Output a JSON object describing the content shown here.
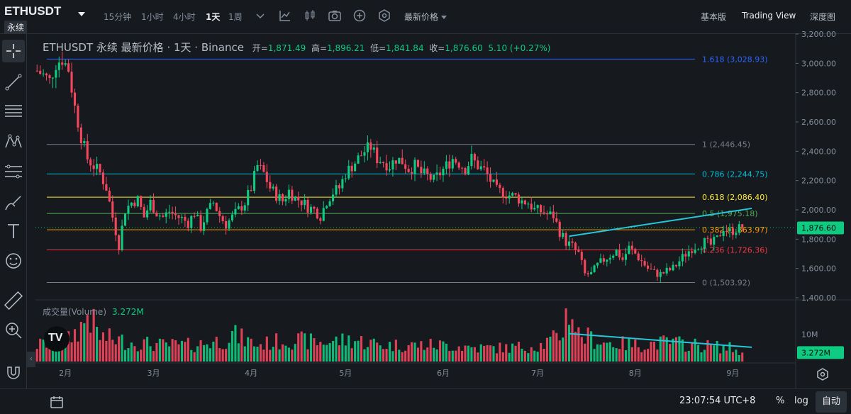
{
  "header": {
    "symbol": "ETHUSDT",
    "contract": "永续",
    "timeframes": [
      {
        "label": "15分钟",
        "active": false
      },
      {
        "label": "1小时",
        "active": false
      },
      {
        "label": "4小时",
        "active": false
      },
      {
        "label": "1天",
        "active": true
      },
      {
        "label": "1周",
        "active": false
      }
    ],
    "toolbar_icons": [
      "chevron-down-icon",
      "indicators-icon",
      "candle-style-icon",
      "camera-icon",
      "plus-circle-icon",
      "settings-hex-icon"
    ],
    "price_type": "最新价格",
    "views": [
      {
        "label": "基本版",
        "active": false
      },
      {
        "label": "Trading View",
        "active": true
      },
      {
        "label": "深度图",
        "active": false
      }
    ]
  },
  "left_tools": [
    "crosshair-icon",
    "trend-line-icon",
    "horizontal-lines-icon",
    "pattern-icon",
    "fib-icon",
    "brush-icon",
    "text-icon",
    "emoji-icon",
    "ruler-icon",
    "zoom-in-icon",
    "magnet-icon"
  ],
  "legend": {
    "title": "ETHUSDT 永续 最新价格 · 1天 · Binance",
    "open_label": "开=",
    "open": "1,871.49",
    "high_label": "高=",
    "high": "1,896.21",
    "low_label": "低=",
    "low": "1,841.84",
    "close_label": "收=",
    "close": "1,876.60",
    "change": "5.10 (+0.27%)"
  },
  "volume_legend": {
    "label": "成交量(Volume)",
    "value": "3.272M"
  },
  "colors": {
    "up": "#0ecb81",
    "down": "#f6465d",
    "background": "#161a1e",
    "grid": "#2b3139",
    "trendline": "#26c6da",
    "fib_1618": "#2962ff",
    "fib_1": "#787b86",
    "fib_0786": "#00bcd4",
    "fib_0618": "#ffeb3b",
    "fib_05": "#4caf50",
    "fib_0382": "#ff9800",
    "fib_0236": "#f23645",
    "fib_0": "#787b86"
  },
  "chart_data": {
    "type": "candlestick",
    "title": "",
    "ylim": [
      1400,
      3200
    ],
    "y_scale": "linear",
    "y_ticks": [
      "1,400.00",
      "1,600.00",
      "1,800.00",
      "2,000.00",
      "2,200.00",
      "2,400.00",
      "2,600.00",
      "2,800.00",
      "3,000.00",
      "3,200.00"
    ],
    "x_ticks": [
      "2月",
      "3月",
      "4月",
      "5月",
      "6月",
      "7月",
      "8月",
      "9月"
    ],
    "x_start": "2022-01-23",
    "last_price": "1,876.60",
    "last_price_value": 1876.6,
    "fib_levels": [
      {
        "ratio": "1.618",
        "label": "1.618 (3,028.93)",
        "value": 3028.93,
        "color": "#2962ff"
      },
      {
        "ratio": "1",
        "label": "1 (2,446.45)",
        "value": 2446.45,
        "color": "#787b86"
      },
      {
        "ratio": "0.786",
        "label": "0.786 (2,244.75)",
        "value": 2244.75,
        "color": "#00bcd4"
      },
      {
        "ratio": "0.618",
        "label": "0.618 (2,086.40)",
        "value": 2086.4,
        "color": "#ffeb3b"
      },
      {
        "ratio": "0.5",
        "label": "0.5 (1,975.18)",
        "value": 1975.18,
        "color": "#4caf50"
      },
      {
        "ratio": "0.382",
        "label": "0.382 (1,863.97)",
        "value": 1863.97,
        "color": "#ff9800"
      },
      {
        "ratio": "0.236",
        "label": "0.236 (1,726.36)",
        "value": 1726.36,
        "color": "#f23645"
      },
      {
        "ratio": "0",
        "label": "0 (1,503.92)",
        "value": 1503.92,
        "color": "#787b86"
      }
    ],
    "price_anchors": [
      [
        0,
        2950
      ],
      [
        2,
        2920
      ],
      [
        4,
        2880
      ],
      [
        6,
        3000
      ],
      [
        8,
        3030
      ],
      [
        10,
        2960
      ],
      [
        12,
        2700
      ],
      [
        14,
        2500
      ],
      [
        16,
        2350
      ],
      [
        18,
        2300
      ],
      [
        20,
        2250
      ],
      [
        22,
        2150
      ],
      [
        24,
        1950
      ],
      [
        26,
        1760
      ],
      [
        28,
        2000
      ],
      [
        30,
        2050
      ],
      [
        32,
        2070
      ],
      [
        34,
        1950
      ],
      [
        36,
        2050
      ],
      [
        38,
        1980
      ],
      [
        40,
        1950
      ],
      [
        42,
        1990
      ],
      [
        44,
        1960
      ],
      [
        46,
        1940
      ],
      [
        48,
        1910
      ],
      [
        50,
        1980
      ],
      [
        52,
        1880
      ],
      [
        54,
        1980
      ],
      [
        56,
        2050
      ],
      [
        58,
        1960
      ],
      [
        60,
        1900
      ],
      [
        62,
        1950
      ],
      [
        64,
        2000
      ],
      [
        66,
        2050
      ],
      [
        68,
        2150
      ],
      [
        70,
        2300
      ],
      [
        72,
        2250
      ],
      [
        74,
        2150
      ],
      [
        76,
        2100
      ],
      [
        78,
        2060
      ],
      [
        80,
        2130
      ],
      [
        82,
        2080
      ],
      [
        84,
        2060
      ],
      [
        86,
        2020
      ],
      [
        88,
        2000
      ],
      [
        90,
        1960
      ],
      [
        92,
        2060
      ],
      [
        94,
        2120
      ],
      [
        96,
        2150
      ],
      [
        98,
        2250
      ],
      [
        100,
        2300
      ],
      [
        102,
        2350
      ],
      [
        104,
        2400
      ],
      [
        106,
        2430
      ],
      [
        108,
        2350
      ],
      [
        110,
        2330
      ],
      [
        112,
        2300
      ],
      [
        114,
        2350
      ],
      [
        116,
        2330
      ],
      [
        118,
        2280
      ],
      [
        120,
        2300
      ],
      [
        122,
        2250
      ],
      [
        124,
        2230
      ],
      [
        126,
        2200
      ],
      [
        128,
        2250
      ],
      [
        130,
        2300
      ],
      [
        132,
        2350
      ],
      [
        134,
        2320
      ],
      [
        136,
        2280
      ],
      [
        138,
        2350
      ],
      [
        140,
        2300
      ],
      [
        142,
        2270
      ],
      [
        144,
        2200
      ],
      [
        146,
        2130
      ],
      [
        148,
        2120
      ],
      [
        150,
        2100
      ],
      [
        152,
        2090
      ],
      [
        154,
        2060
      ],
      [
        156,
        2050
      ],
      [
        158,
        2000
      ],
      [
        160,
        1990
      ],
      [
        162,
        1970
      ],
      [
        164,
        1960
      ],
      [
        166,
        1850
      ],
      [
        168,
        1780
      ],
      [
        170,
        1750
      ],
      [
        172,
        1700
      ],
      [
        174,
        1560
      ],
      [
        176,
        1560
      ],
      [
        178,
        1620
      ],
      [
        180,
        1660
      ],
      [
        182,
        1690
      ],
      [
        184,
        1720
      ],
      [
        186,
        1660
      ],
      [
        188,
        1740
      ],
      [
        190,
        1700
      ],
      [
        192,
        1650
      ],
      [
        194,
        1600
      ],
      [
        196,
        1570
      ],
      [
        198,
        1560
      ],
      [
        200,
        1580
      ],
      [
        202,
        1600
      ],
      [
        204,
        1650
      ],
      [
        206,
        1700
      ],
      [
        208,
        1740
      ],
      [
        210,
        1760
      ],
      [
        212,
        1780
      ],
      [
        214,
        1760
      ],
      [
        216,
        1800
      ],
      [
        218,
        1880
      ],
      [
        220,
        1850
      ],
      [
        222,
        1870
      ],
      [
        224,
        1876
      ]
    ],
    "trendlines": [
      {
        "pane": "price",
        "from": [
          169,
          1820
        ],
        "to": [
          227,
          2010
        ],
        "color": "#26c6da"
      },
      {
        "pane": "volume",
        "from": [
          169,
          10.2
        ],
        "to": [
          227,
          5.2
        ],
        "color": "#26c6da"
      }
    ],
    "volume": {
      "unit": "M",
      "tick": "10M",
      "current": "3.272M",
      "current_value": 3.272,
      "ylim": [
        0,
        22
      ],
      "anchors": [
        [
          0,
          6
        ],
        [
          10,
          8
        ],
        [
          15,
          14
        ],
        [
          16,
          18
        ],
        [
          20,
          9
        ],
        [
          30,
          7
        ],
        [
          40,
          6
        ],
        [
          50,
          6
        ],
        [
          60,
          8
        ],
        [
          62,
          10
        ],
        [
          70,
          6
        ],
        [
          80,
          8
        ],
        [
          90,
          7
        ],
        [
          100,
          8
        ],
        [
          110,
          6
        ],
        [
          120,
          6
        ],
        [
          130,
          6
        ],
        [
          140,
          5
        ],
        [
          150,
          5
        ],
        [
          160,
          6
        ],
        [
          166,
          9
        ],
        [
          169,
          20
        ],
        [
          172,
          10
        ],
        [
          180,
          7
        ],
        [
          190,
          6
        ],
        [
          200,
          7
        ],
        [
          210,
          6
        ],
        [
          220,
          5
        ],
        [
          224,
          3.3
        ]
      ]
    }
  }
}
